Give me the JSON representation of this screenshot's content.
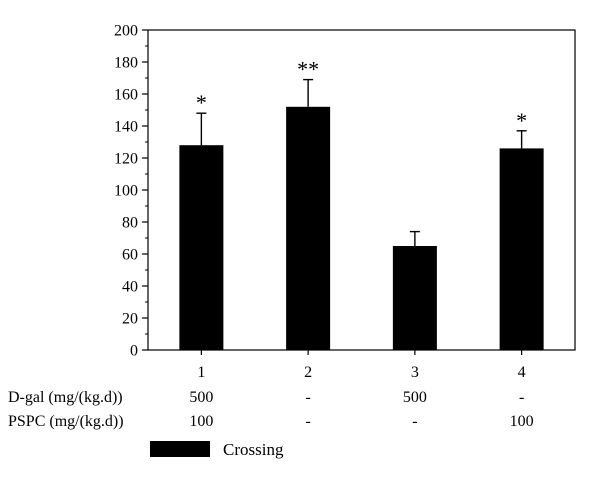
{
  "chart_data": {
    "type": "bar",
    "categories": [
      "1",
      "2",
      "3",
      "4"
    ],
    "values": [
      128,
      152,
      65,
      126
    ],
    "errors": [
      20,
      17,
      9,
      11
    ],
    "significance": [
      "*",
      "**",
      "",
      "*"
    ],
    "ylim": [
      0,
      200
    ],
    "yticks": [
      0,
      20,
      40,
      60,
      80,
      100,
      120,
      140,
      160,
      180,
      200
    ],
    "grid": false,
    "bar_color": "#000000",
    "legend": {
      "label": "Crossing",
      "position": "bottom-left"
    },
    "dose_table": [
      {
        "label": "D-gal (mg/(kg.d))",
        "values": [
          "500",
          "-",
          "500",
          "-"
        ]
      },
      {
        "label": "PSPC (mg/(kg.d))",
        "values": [
          "100",
          "-",
          "-",
          "100"
        ]
      }
    ]
  }
}
